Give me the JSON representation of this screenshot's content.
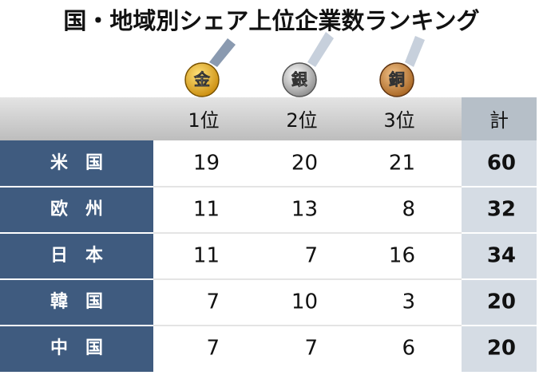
{
  "title": "国・地域別シェア上位企業数ランキング",
  "medals": [
    "金",
    "銀",
    "銅"
  ],
  "header": [
    "1位",
    "2位",
    "3位",
    "計"
  ],
  "rows": [
    {
      "name": "米　国",
      "values": [
        19,
        20,
        21
      ],
      "total": 60
    },
    {
      "name": "欧　州",
      "values": [
        11,
        13,
        8
      ],
      "total": 32
    },
    {
      "name": "日　本",
      "values": [
        11,
        7,
        16
      ],
      "total": 34
    },
    {
      "name": "韓　国",
      "values": [
        7,
        10,
        3
      ],
      "total": 20
    },
    {
      "name": "中　国",
      "values": [
        7,
        7,
        6
      ],
      "total": 20
    }
  ]
}
